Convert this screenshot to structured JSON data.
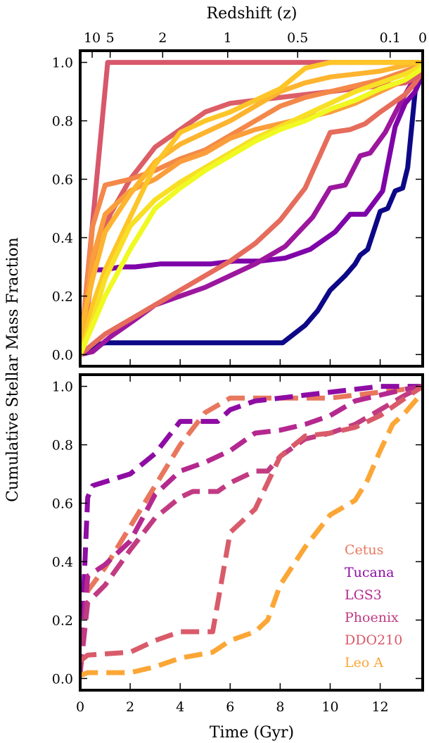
{
  "figure": {
    "top_axis_label": "Redshift (z)",
    "y_label": "Cumulative Stellar Mass Fraction",
    "x_label": "Time (Gyr)"
  },
  "chart_data": [
    {
      "type": "line",
      "panel": "top",
      "xlim": [
        0,
        13.7
      ],
      "ylim": [
        -0.04,
        1.04
      ],
      "x_ticks": [
        0,
        2,
        4,
        6,
        8,
        10,
        12
      ],
      "y_ticks": [
        0.0,
        0.2,
        0.4,
        0.6,
        0.8,
        1.0
      ],
      "y_tick_labels": [
        "0.0",
        "0.2",
        "0.4",
        "0.6",
        "0.8",
        "1.0"
      ],
      "top_axis": {
        "label": "Redshift (z)",
        "ticks": [
          {
            "label": "10",
            "time": 0.48
          },
          {
            "label": "5",
            "time": 1.2
          },
          {
            "label": "2",
            "time": 3.3
          },
          {
            "label": "1",
            "time": 5.9
          },
          {
            "label": "0.5",
            "time": 8.7
          },
          {
            "label": "0.1",
            "time": 12.4
          },
          {
            "label": "0",
            "time": 13.7
          }
        ]
      },
      "legend": "none",
      "line_style": "solid",
      "series": [
        {
          "color": "#0d0887",
          "x": [
            0,
            0.5,
            1.0,
            8.1,
            9.0,
            9.5,
            10.0,
            10.6,
            11.0,
            11.2,
            11.5,
            12.0,
            12.3,
            12.6,
            12.9,
            13.1,
            13.4,
            13.7
          ],
          "y": [
            0,
            0.03,
            0.04,
            0.04,
            0.1,
            0.15,
            0.22,
            0.27,
            0.31,
            0.34,
            0.36,
            0.49,
            0.5,
            0.56,
            0.57,
            0.64,
            0.9,
            0.96
          ]
        },
        {
          "color": "#7e03a8",
          "x": [
            0,
            0.5,
            1.0,
            1.6,
            2.2,
            3.2,
            4.2,
            5.2,
            6.2,
            7.2,
            8.2,
            9.2,
            10.2,
            10.8,
            11.4,
            12.1,
            12.6,
            13.0,
            13.4,
            13.7
          ],
          "y": [
            0,
            0.29,
            0.29,
            0.3,
            0.3,
            0.31,
            0.31,
            0.31,
            0.32,
            0.32,
            0.33,
            0.36,
            0.42,
            0.48,
            0.48,
            0.56,
            0.78,
            0.86,
            0.9,
            0.97
          ]
        },
        {
          "color": "#9c179e",
          "x": [
            0,
            0.5,
            1.2,
            2.2,
            3.0,
            4.0,
            5.0,
            6.0,
            7.0,
            7.6,
            8.2,
            9.3,
            10.0,
            10.6,
            11.2,
            11.6,
            12.2,
            12.8,
            13.2,
            13.7
          ],
          "y": [
            0,
            0.01,
            0.06,
            0.12,
            0.17,
            0.2,
            0.23,
            0.27,
            0.31,
            0.34,
            0.37,
            0.47,
            0.57,
            0.58,
            0.68,
            0.69,
            0.76,
            0.86,
            0.92,
            0.98
          ]
        },
        {
          "color": "#d8576b",
          "x": [
            0,
            1.1,
            13.7
          ],
          "y": [
            0,
            1.0,
            1.0
          ]
        },
        {
          "color": "#e66c5c",
          "x": [
            0,
            1.0,
            2.0,
            3.0,
            4.0,
            5.0,
            6.0,
            7.0,
            8.0,
            9.0,
            10.0,
            10.8,
            11.4,
            12.0,
            12.5,
            13.0,
            13.4,
            13.7
          ],
          "y": [
            0,
            0.07,
            0.12,
            0.17,
            0.22,
            0.27,
            0.32,
            0.38,
            0.46,
            0.57,
            0.76,
            0.77,
            0.79,
            0.83,
            0.86,
            0.89,
            0.93,
            0.97
          ]
        },
        {
          "color": "#dc5e66",
          "x": [
            0,
            0.5,
            1.2,
            2.0,
            3.0,
            4.0,
            5.0,
            6.0,
            7.0,
            8.0,
            9.0,
            10.0,
            11.0,
            12.0,
            13.0,
            13.7
          ],
          "y": [
            0,
            0.28,
            0.48,
            0.6,
            0.71,
            0.77,
            0.83,
            0.86,
            0.87,
            0.88,
            0.89,
            0.9,
            0.91,
            0.92,
            0.93,
            0.96
          ]
        },
        {
          "color": "#f48849",
          "x": [
            0,
            0.5,
            1.0,
            2.0,
            3.0,
            4.0,
            5.0,
            6.0,
            7.0,
            8.0,
            9.0,
            10.0,
            11.0,
            12.0,
            13.0,
            13.7
          ],
          "y": [
            0,
            0.44,
            0.58,
            0.6,
            0.63,
            0.67,
            0.7,
            0.75,
            0.8,
            0.85,
            0.88,
            0.9,
            0.92,
            0.94,
            0.97,
            0.99
          ]
        },
        {
          "color": "#fa9e3b",
          "x": [
            0,
            0.5,
            1.0,
            2.0,
            3.0,
            4.0,
            5.0,
            6.0,
            7.0,
            8.0,
            9.0,
            10.0,
            11.0,
            12.0,
            13.0,
            13.7
          ],
          "y": [
            0,
            0.33,
            0.48,
            0.56,
            0.6,
            0.66,
            0.69,
            0.74,
            0.77,
            0.79,
            0.81,
            0.83,
            0.86,
            0.9,
            0.94,
            0.99
          ]
        },
        {
          "color": "#fdb42f",
          "x": [
            0,
            0.5,
            1.0,
            2.0,
            3.0,
            4.0,
            5.0,
            6.0,
            7.0,
            8.0,
            9.0,
            10.0,
            11.0,
            12.0,
            13.0,
            13.7
          ],
          "y": [
            0.07,
            0.26,
            0.42,
            0.55,
            0.66,
            0.72,
            0.76,
            0.8,
            0.85,
            0.9,
            0.93,
            0.95,
            0.96,
            0.97,
            0.99,
            1.0
          ]
        },
        {
          "color": "#fdc527",
          "x": [
            0,
            0.5,
            1.0,
            2.0,
            3.0,
            4.0,
            5.0,
            6.0,
            7.0,
            8.0,
            9.0,
            10.0,
            11.0,
            12.0,
            13.0,
            13.7
          ],
          "y": [
            0,
            0.17,
            0.29,
            0.47,
            0.65,
            0.76,
            0.8,
            0.83,
            0.87,
            0.91,
            0.98,
            1.0,
            1.0,
            1.0,
            1.0,
            1.0
          ]
        },
        {
          "color": "#f8df25",
          "x": [
            0,
            0.5,
            1.0,
            2.0,
            3.0,
            4.0,
            5.0,
            6.0,
            7.0,
            8.0,
            9.0,
            10.0,
            11.0,
            12.0,
            13.0,
            13.7
          ],
          "y": [
            0,
            0.12,
            0.26,
            0.44,
            0.53,
            0.59,
            0.64,
            0.69,
            0.74,
            0.78,
            0.82,
            0.86,
            0.9,
            0.93,
            0.96,
            0.99
          ]
        },
        {
          "color": "#f0f921",
          "x": [
            0,
            0.5,
            1.0,
            2.0,
            3.0,
            4.0,
            5.0,
            6.0,
            7.0,
            8.0,
            9.0,
            10.0,
            11.0,
            12.0,
            13.0,
            13.7
          ],
          "y": [
            0,
            0.1,
            0.2,
            0.36,
            0.5,
            0.57,
            0.63,
            0.68,
            0.73,
            0.77,
            0.8,
            0.84,
            0.87,
            0.91,
            0.94,
            0.98
          ]
        }
      ]
    },
    {
      "type": "line",
      "panel": "bottom",
      "xlim": [
        0,
        13.7
      ],
      "ylim": [
        -0.04,
        1.04
      ],
      "x_ticks": [
        0,
        2,
        4,
        6,
        8,
        10,
        12
      ],
      "x_tick_labels": [
        "0",
        "2",
        "4",
        "6",
        "8",
        "10",
        "12"
      ],
      "y_ticks": [
        0.0,
        0.2,
        0.4,
        0.6,
        0.8,
        1.0
      ],
      "y_tick_labels": [
        "0.0",
        "0.2",
        "0.4",
        "0.6",
        "0.8",
        "1.0"
      ],
      "xlabel": "Time (Gyr)",
      "legend": "lower-right",
      "line_style": "dashed",
      "series": [
        {
          "name": "Cetus",
          "color": "#e8775d",
          "x": [
            0,
            0.3,
            1.0,
            2.0,
            3.0,
            4.0,
            5.0,
            6.0,
            7.0,
            8.0,
            9.0,
            10.0,
            11.0,
            12.0,
            13.0,
            13.7
          ],
          "y": [
            0.02,
            0.3,
            0.38,
            0.52,
            0.66,
            0.8,
            0.91,
            0.96,
            0.96,
            0.96,
            0.96,
            0.96,
            0.97,
            0.98,
            0.99,
            1.0
          ]
        },
        {
          "name": "Tucana",
          "color": "#8e0ca4",
          "x": [
            0,
            0.3,
            0.5,
            2.0,
            3.0,
            4.0,
            4.5,
            5.5,
            6.0,
            7.0,
            8.0,
            9.0,
            10.0,
            11.0,
            12.0,
            13.0,
            13.7
          ],
          "y": [
            0.02,
            0.62,
            0.66,
            0.7,
            0.77,
            0.88,
            0.88,
            0.88,
            0.92,
            0.95,
            0.96,
            0.97,
            0.98,
            0.99,
            1.0,
            1.0,
            1.0
          ]
        },
        {
          "name": "LGS3",
          "color": "#b4288f",
          "x": [
            0,
            0.3,
            1.0,
            2.0,
            2.5,
            3.0,
            4.0,
            5.0,
            6.0,
            7.0,
            8.0,
            9.0,
            10.0,
            11.0,
            12.0,
            13.0,
            13.7
          ],
          "y": [
            0.02,
            0.35,
            0.39,
            0.47,
            0.55,
            0.63,
            0.71,
            0.74,
            0.78,
            0.84,
            0.85,
            0.87,
            0.9,
            0.95,
            0.97,
            0.99,
            1.0
          ]
        },
        {
          "name": "Phoenix",
          "color": "#c13b82",
          "x": [
            0,
            0.3,
            1.0,
            2.0,
            3.0,
            4.0,
            4.5,
            5.5,
            6.0,
            7.0,
            7.5,
            8.0,
            9.0,
            10.0,
            11.0,
            12.0,
            13.0,
            13.7
          ],
          "y": [
            0.02,
            0.26,
            0.32,
            0.44,
            0.55,
            0.62,
            0.64,
            0.64,
            0.67,
            0.71,
            0.71,
            0.76,
            0.82,
            0.84,
            0.87,
            0.92,
            0.97,
            1.0
          ]
        },
        {
          "name": "DDO210",
          "color": "#d95b6a",
          "x": [
            0,
            0.3,
            2.0,
            3.0,
            4.0,
            5.3,
            6.0,
            7.0,
            8.0,
            9.0,
            10.0,
            11.0,
            12.0,
            13.0,
            13.7
          ],
          "y": [
            0.06,
            0.08,
            0.09,
            0.13,
            0.16,
            0.16,
            0.5,
            0.58,
            0.76,
            0.83,
            0.84,
            0.86,
            0.9,
            0.96,
            1.0
          ]
        },
        {
          "name": "Leo A",
          "color": "#fca636",
          "x": [
            0,
            0.3,
            2.0,
            3.0,
            4.0,
            5.3,
            6.0,
            7.0,
            7.5,
            8.0,
            9.0,
            10.0,
            11.0,
            11.5,
            12.0,
            12.5,
            13.0,
            13.7
          ],
          "y": [
            0.01,
            0.02,
            0.02,
            0.04,
            0.07,
            0.09,
            0.13,
            0.16,
            0.2,
            0.32,
            0.45,
            0.56,
            0.61,
            0.68,
            0.78,
            0.87,
            0.91,
            0.98
          ]
        }
      ]
    }
  ]
}
